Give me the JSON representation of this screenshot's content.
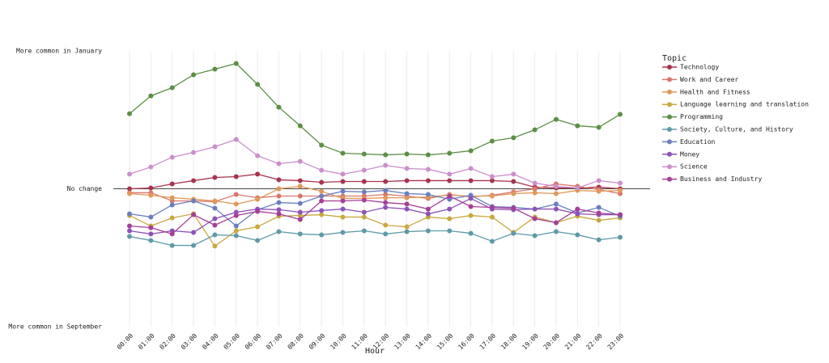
{
  "chart_data": {
    "type": "line",
    "xlabel": "Hour",
    "legend_title": "Topic",
    "legend": "right",
    "grid": "x",
    "categories": [
      "00:00",
      "01:00",
      "02:00",
      "03:00",
      "04:00",
      "05:00",
      "06:00",
      "07:00",
      "08:00",
      "09:00",
      "10:00",
      "11:00",
      "12:00",
      "13:00",
      "14:00",
      "15:00",
      "16:00",
      "17:00",
      "18:00",
      "19:00",
      "20:00",
      "21:00",
      "22:00",
      "23:00"
    ],
    "ylim": [
      -1,
      1
    ],
    "yticks": [
      {
        "value": 1,
        "label": "More common in January"
      },
      {
        "value": 0,
        "label": "No change"
      },
      {
        "value": -1,
        "label": "More common in September"
      }
    ],
    "series": [
      {
        "name": "Technology",
        "color": "#a8344f",
        "values": [
          0,
          0.006,
          0.035,
          0.059,
          0.082,
          0.088,
          0.106,
          0.065,
          0.059,
          0.047,
          0.053,
          0.053,
          0.053,
          0.059,
          0.059,
          0.059,
          0.059,
          0.059,
          0.053,
          0.012,
          0.006,
          0.006,
          0.012,
          0
        ]
      },
      {
        "name": "Work and Career",
        "color": "#d9776a",
        "values": [
          -0.029,
          -0.029,
          -0.088,
          -0.088,
          -0.094,
          -0.041,
          -0.065,
          -0.053,
          -0.053,
          -0.053,
          -0.053,
          -0.053,
          -0.041,
          -0.053,
          -0.07,
          -0.041,
          -0.059,
          -0.047,
          -0.023,
          0,
          0.035,
          0.018,
          -0.006,
          -0.035
        ]
      },
      {
        "name": "Health and Fitness",
        "color": "#e0995a",
        "values": [
          -0.035,
          -0.047,
          -0.065,
          -0.076,
          -0.088,
          -0.111,
          -0.076,
          0,
          0.018,
          -0.018,
          -0.07,
          -0.07,
          -0.065,
          -0.065,
          -0.059,
          -0.047,
          -0.053,
          -0.053,
          -0.035,
          -0.029,
          -0.035,
          -0.012,
          -0.018,
          -0.012
        ]
      },
      {
        "name": "Language learning and translation",
        "color": "#c9a83f",
        "values": [
          -0.194,
          -0.27,
          -0.211,
          -0.182,
          -0.416,
          -0.305,
          -0.276,
          -0.199,
          -0.194,
          -0.188,
          -0.205,
          -0.205,
          -0.264,
          -0.276,
          -0.205,
          -0.217,
          -0.194,
          -0.205,
          -0.317,
          -0.205,
          -0.246,
          -0.199,
          -0.229,
          -0.211
        ]
      },
      {
        "name": "Programming",
        "color": "#5b8f45",
        "values": [
          0.545,
          0.674,
          0.733,
          0.827,
          0.868,
          0.909,
          0.757,
          0.592,
          0.457,
          0.317,
          0.258,
          0.252,
          0.246,
          0.252,
          0.246,
          0.258,
          0.276,
          0.346,
          0.37,
          0.428,
          0.504,
          0.457,
          0.446,
          0.54
        ]
      },
      {
        "name": "Society, Culture, and History",
        "color": "#5e9aa8",
        "values": [
          -0.346,
          -0.375,
          -0.411,
          -0.411,
          -0.334,
          -0.34,
          -0.375,
          -0.311,
          -0.328,
          -0.334,
          -0.317,
          -0.305,
          -0.328,
          -0.311,
          -0.305,
          -0.305,
          -0.323,
          -0.381,
          -0.323,
          -0.34,
          -0.311,
          -0.334,
          -0.37,
          -0.352
        ]
      },
      {
        "name": "Education",
        "color": "#6b7fc0",
        "values": [
          -0.182,
          -0.205,
          -0.117,
          -0.088,
          -0.141,
          -0.27,
          -0.152,
          -0.1,
          -0.106,
          -0.053,
          -0.018,
          -0.023,
          -0.012,
          -0.035,
          -0.041,
          -0.076,
          -0.047,
          -0.129,
          -0.135,
          -0.147,
          -0.111,
          -0.176,
          -0.135,
          -0.199
        ]
      },
      {
        "name": "Money",
        "color": "#8e52b8",
        "values": [
          -0.305,
          -0.328,
          -0.305,
          -0.317,
          -0.217,
          -0.17,
          -0.147,
          -0.152,
          -0.17,
          -0.158,
          -0.147,
          -0.17,
          -0.135,
          -0.147,
          -0.182,
          -0.147,
          -0.07,
          -0.147,
          -0.152,
          -0.147,
          -0.147,
          -0.182,
          -0.188,
          -0.188
        ]
      },
      {
        "name": "Science",
        "color": "#cc8fcc",
        "values": [
          0.106,
          0.158,
          0.229,
          0.264,
          0.305,
          0.358,
          0.24,
          0.182,
          0.199,
          0.135,
          0.106,
          0.135,
          0.17,
          0.147,
          0.141,
          0.106,
          0.147,
          0.088,
          0.106,
          0.041,
          0.018,
          0.006,
          0.059,
          0.041
        ]
      },
      {
        "name": "Business and Industry",
        "color": "#a63f97",
        "values": [
          -0.27,
          -0.282,
          -0.328,
          -0.188,
          -0.264,
          -0.194,
          -0.164,
          -0.182,
          -0.223,
          -0.088,
          -0.088,
          -0.082,
          -0.1,
          -0.111,
          -0.147,
          -0.053,
          -0.129,
          -0.135,
          -0.141,
          -0.217,
          -0.246,
          -0.147,
          -0.176,
          -0.188
        ]
      }
    ]
  }
}
